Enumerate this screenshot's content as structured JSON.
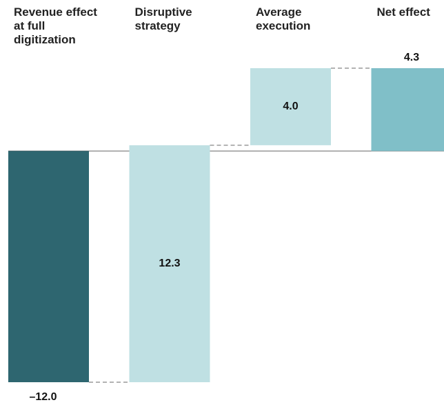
{
  "chart_data": {
    "type": "waterfall",
    "categories": [
      "Revenue effect at full digitization",
      "Disruptive strategy",
      "Average execution",
      "Net effect"
    ],
    "values": [
      -12.0,
      12.3,
      4.0,
      4.3
    ],
    "value_labels": [
      "–12.0",
      "12.3",
      "4.0",
      "4.3"
    ],
    "colors": [
      "#2e6670",
      "#bfe0e3",
      "#bfe0e3",
      "#80bfc8"
    ]
  }
}
